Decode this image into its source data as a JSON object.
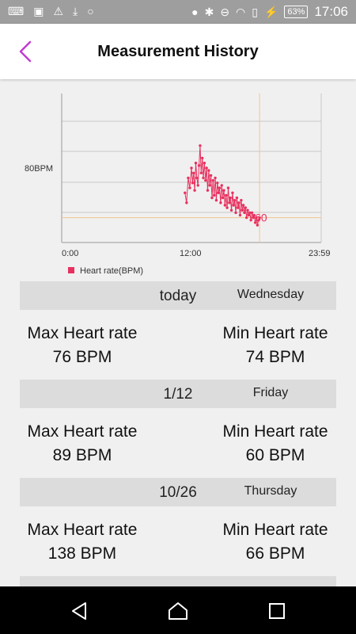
{
  "status_bar": {
    "battery": "63%",
    "time": "17:06"
  },
  "header": {
    "title": "Measurement History"
  },
  "colors": {
    "accent": "#c23bd4",
    "series": "#e8305e",
    "limit_line": "#f5c48f"
  },
  "chart_data": {
    "type": "line",
    "title": "",
    "xlabel": "",
    "ylabel": "",
    "x_ticks": [
      "0:00",
      "12:00",
      "23:59"
    ],
    "y_ticks": [
      "80BPM"
    ],
    "xlim_hours": [
      0,
      24
    ],
    "ylim": [
      50,
      110
    ],
    "grid": true,
    "legend_position": "bottom-left",
    "limit_line_bpm": 60,
    "current_hour": 18.3,
    "last_value_label": "60",
    "series": [
      {
        "name": "Heart rate(BPM)",
        "x": [
          11.4,
          11.55,
          11.7,
          11.85,
          12.0,
          12.1,
          12.2,
          12.3,
          12.4,
          12.5,
          12.6,
          12.7,
          12.8,
          12.9,
          13.0,
          13.1,
          13.2,
          13.3,
          13.4,
          13.5,
          13.6,
          13.7,
          13.8,
          13.9,
          14.0,
          14.1,
          14.2,
          14.3,
          14.4,
          14.5,
          14.6,
          14.7,
          14.8,
          14.9,
          15.0,
          15.1,
          15.2,
          15.3,
          15.4,
          15.5,
          15.6,
          15.7,
          15.8,
          15.9,
          16.0,
          16.1,
          16.2,
          16.3,
          16.4,
          16.5,
          16.6,
          16.7,
          16.8,
          16.9,
          17.0,
          17.1,
          17.2,
          17.3,
          17.4,
          17.5,
          17.6,
          17.7,
          17.8,
          17.9,
          18.0,
          18.1,
          18.2,
          18.3
        ],
        "values": [
          70,
          66,
          76,
          72,
          80,
          74,
          78,
          71,
          82,
          76,
          73,
          81,
          89,
          78,
          84,
          76,
          82,
          75,
          80,
          71,
          79,
          73,
          77,
          68,
          75,
          69,
          76,
          67,
          74,
          70,
          72,
          66,
          73,
          68,
          71,
          65,
          69,
          64,
          72,
          66,
          68,
          63,
          70,
          65,
          67,
          62,
          68,
          64,
          66,
          61,
          67,
          63,
          65,
          62,
          64,
          60,
          63,
          61,
          62,
          59,
          62,
          60,
          61,
          58,
          60,
          57,
          59,
          60
        ]
      }
    ]
  },
  "days": [
    {
      "date": "today",
      "weekday": "Wednesday",
      "max_label": "Max Heart rate",
      "max_value": "76 BPM",
      "min_label": "Min Heart rate",
      "min_value": "74 BPM"
    },
    {
      "date": "1/12",
      "weekday": "Friday",
      "max_label": "Max Heart rate",
      "max_value": "89 BPM",
      "min_label": "Min Heart rate",
      "min_value": "60 BPM"
    },
    {
      "date": "10/26",
      "weekday": "Thursday",
      "max_label": "Max Heart rate",
      "max_value": "138 BPM",
      "min_label": "Min Heart rate",
      "min_value": "66 BPM"
    }
  ]
}
